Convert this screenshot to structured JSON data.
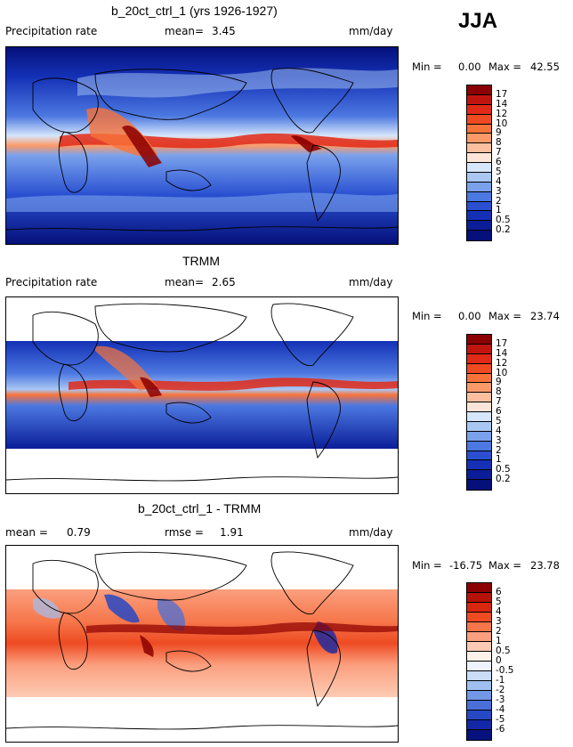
{
  "season": "JJA",
  "panels": [
    {
      "title": "b_20ct_ctrl_1 (yrs 1926-1927)",
      "left_label": "Precipitation rate",
      "mean_label": "mean=",
      "mean_value": "3.45",
      "units": "mm/day",
      "min_label": "Min =",
      "min_value": "0.00",
      "max_label": "Max =",
      "max_value": "42.55",
      "coverage": "global",
      "colorbar": {
        "labels": [
          "17",
          "14",
          "12",
          "10",
          "9",
          "8",
          "7",
          "6",
          "5",
          "4",
          "3",
          "2",
          "1",
          "0.5",
          "0.2"
        ],
        "colors": [
          "#8b0000",
          "#c0150f",
          "#e02a17",
          "#f04a22",
          "#f8733a",
          "#fb9a68",
          "#fcc09f",
          "#fde6d7",
          "#d6e6fb",
          "#aac7f4",
          "#7aa2ec",
          "#4c78e1",
          "#2a50d1",
          "#1431b6",
          "#0b1e98",
          "#05107a"
        ]
      }
    },
    {
      "title": "TRMM",
      "left_label": "Precipitation rate",
      "mean_label": "mean=",
      "mean_value": "2.65",
      "units": "mm/day",
      "min_label": "Min =",
      "min_value": "0.00",
      "max_label": "Max =",
      "max_value": "23.74",
      "coverage": "tropics-band",
      "colorbar": {
        "labels": [
          "17",
          "14",
          "12",
          "10",
          "9",
          "8",
          "7",
          "6",
          "5",
          "4",
          "3",
          "2",
          "1",
          "0.5",
          "0.2"
        ],
        "colors": [
          "#8b0000",
          "#c0150f",
          "#e02a17",
          "#f04a22",
          "#f8733a",
          "#fb9a68",
          "#fcc09f",
          "#fde6d7",
          "#d6e6fb",
          "#aac7f4",
          "#7aa2ec",
          "#4c78e1",
          "#2a50d1",
          "#1431b6",
          "#0b1e98",
          "#05107a"
        ]
      }
    },
    {
      "title": "b_20ct_ctrl_1 - TRMM",
      "mean_label": "mean =",
      "mean_value": "0.79",
      "rmse_label": "rmse =",
      "rmse_value": "1.91",
      "units": "mm/day",
      "min_label": "Min =",
      "min_value": "-16.75",
      "max_label": "Max =",
      "max_value": "23.78",
      "coverage": "tropics-band",
      "colorbar": {
        "labels": [
          "6",
          "5",
          "4",
          "3",
          "2",
          "1",
          "0.5",
          "0",
          "-0.5",
          "-1",
          "-2",
          "-3",
          "-4",
          "-5",
          "-6"
        ],
        "colors": [
          "#8b0000",
          "#b51208",
          "#d8260f",
          "#ee4b22",
          "#f6764a",
          "#fb9f7e",
          "#fdcbb4",
          "#fff2ea",
          "#eef3fc",
          "#c9dcf8",
          "#9fbff1",
          "#7297e6",
          "#4a6fd8",
          "#2748c4",
          "#1328a6",
          "#06127e"
        ]
      }
    }
  ]
}
